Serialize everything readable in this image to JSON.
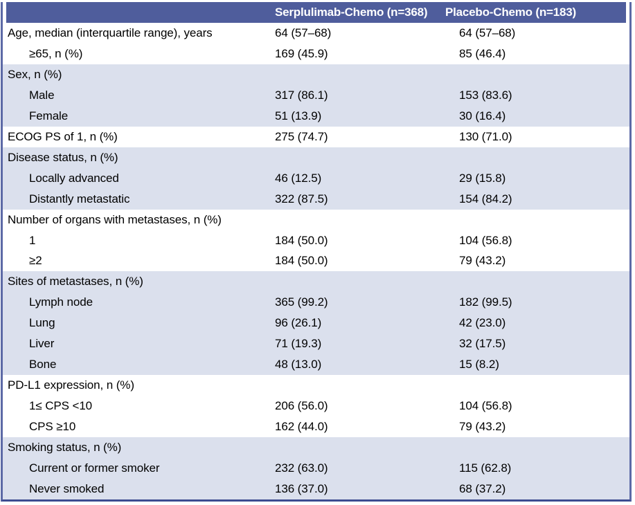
{
  "colors": {
    "header_bg": "#4f5d9c",
    "header_text": "#ffffff",
    "shade_bg": "#dbe0ed",
    "border_side": "#5c69a6",
    "border_bottom": "#3c4b90"
  },
  "table": {
    "header": {
      "col1": "",
      "col2": "Serplulimab-Chemo (n=368)",
      "col3": "Placebo-Chemo (n=183)"
    },
    "rows": [
      {
        "label": "Age, median (interquartile range), years",
        "v1": "64 (57–68)",
        "v2": "64 (57–68)",
        "indent": 0,
        "band": "plain"
      },
      {
        "label": "≥65, n (%)",
        "v1": "169 (45.9)",
        "v2": "85 (46.4)",
        "indent": 1,
        "band": "plain"
      },
      {
        "label": "Sex, n (%)",
        "v1": "",
        "v2": "",
        "indent": 0,
        "band": "shade"
      },
      {
        "label": "Male",
        "v1": "317 (86.1)",
        "v2": "153 (83.6)",
        "indent": 1,
        "band": "shade"
      },
      {
        "label": "Female",
        "v1": "51 (13.9)",
        "v2": "30 (16.4)",
        "indent": 1,
        "band": "shade"
      },
      {
        "label": "ECOG PS of 1, n (%)",
        "v1": "275 (74.7)",
        "v2": "130 (71.0)",
        "indent": 0,
        "band": "plain"
      },
      {
        "label": "Disease status, n (%)",
        "v1": "",
        "v2": "",
        "indent": 0,
        "band": "shade"
      },
      {
        "label": "Locally advanced",
        "v1": "46 (12.5)",
        "v2": "29 (15.8)",
        "indent": 1,
        "band": "shade"
      },
      {
        "label": "Distantly metastatic",
        "v1": "322 (87.5)",
        "v2": "154 (84.2)",
        "indent": 1,
        "band": "shade"
      },
      {
        "label": "Number of organs with metastases, n (%)",
        "v1": "",
        "v2": "",
        "indent": 0,
        "band": "plain"
      },
      {
        "label": "1",
        "v1": "184 (50.0)",
        "v2": "104 (56.8)",
        "indent": 1,
        "band": "plain"
      },
      {
        "label": "≥2",
        "v1": "184 (50.0)",
        "v2": "79 (43.2)",
        "indent": 1,
        "band": "plain"
      },
      {
        "label": "Sites of metastases, n (%)",
        "v1": "",
        "v2": "",
        "indent": 0,
        "band": "shade"
      },
      {
        "label": "Lymph node",
        "v1": "365 (99.2)",
        "v2": "182 (99.5)",
        "indent": 1,
        "band": "shade"
      },
      {
        "label": "Lung",
        "v1": "96 (26.1)",
        "v2": "42 (23.0)",
        "indent": 1,
        "band": "shade"
      },
      {
        "label": "Liver",
        "v1": "71 (19.3)",
        "v2": "32 (17.5)",
        "indent": 1,
        "band": "shade"
      },
      {
        "label": "Bone",
        "v1": "48 (13.0)",
        "v2": "15 (8.2)",
        "indent": 1,
        "band": "shade"
      },
      {
        "label": "PD-L1 expression, n (%)",
        "v1": "",
        "v2": "",
        "indent": 0,
        "band": "plain"
      },
      {
        "label": "1≤ CPS <10",
        "v1": "206 (56.0)",
        "v2": "104 (56.8)",
        "indent": 1,
        "band": "plain"
      },
      {
        "label": "CPS ≥10",
        "v1": "162 (44.0)",
        "v2": "79 (43.2)",
        "indent": 1,
        "band": "plain"
      },
      {
        "label": "Smoking status, n (%)",
        "v1": "",
        "v2": "",
        "indent": 0,
        "band": "shade"
      },
      {
        "label": "Current or former smoker",
        "v1": "232 (63.0)",
        "v2": "115 (62.8)",
        "indent": 1,
        "band": "shade"
      },
      {
        "label": "Never smoked",
        "v1": "136 (37.0)",
        "v2": "68 (37.2)",
        "indent": 1,
        "band": "shade"
      }
    ]
  }
}
